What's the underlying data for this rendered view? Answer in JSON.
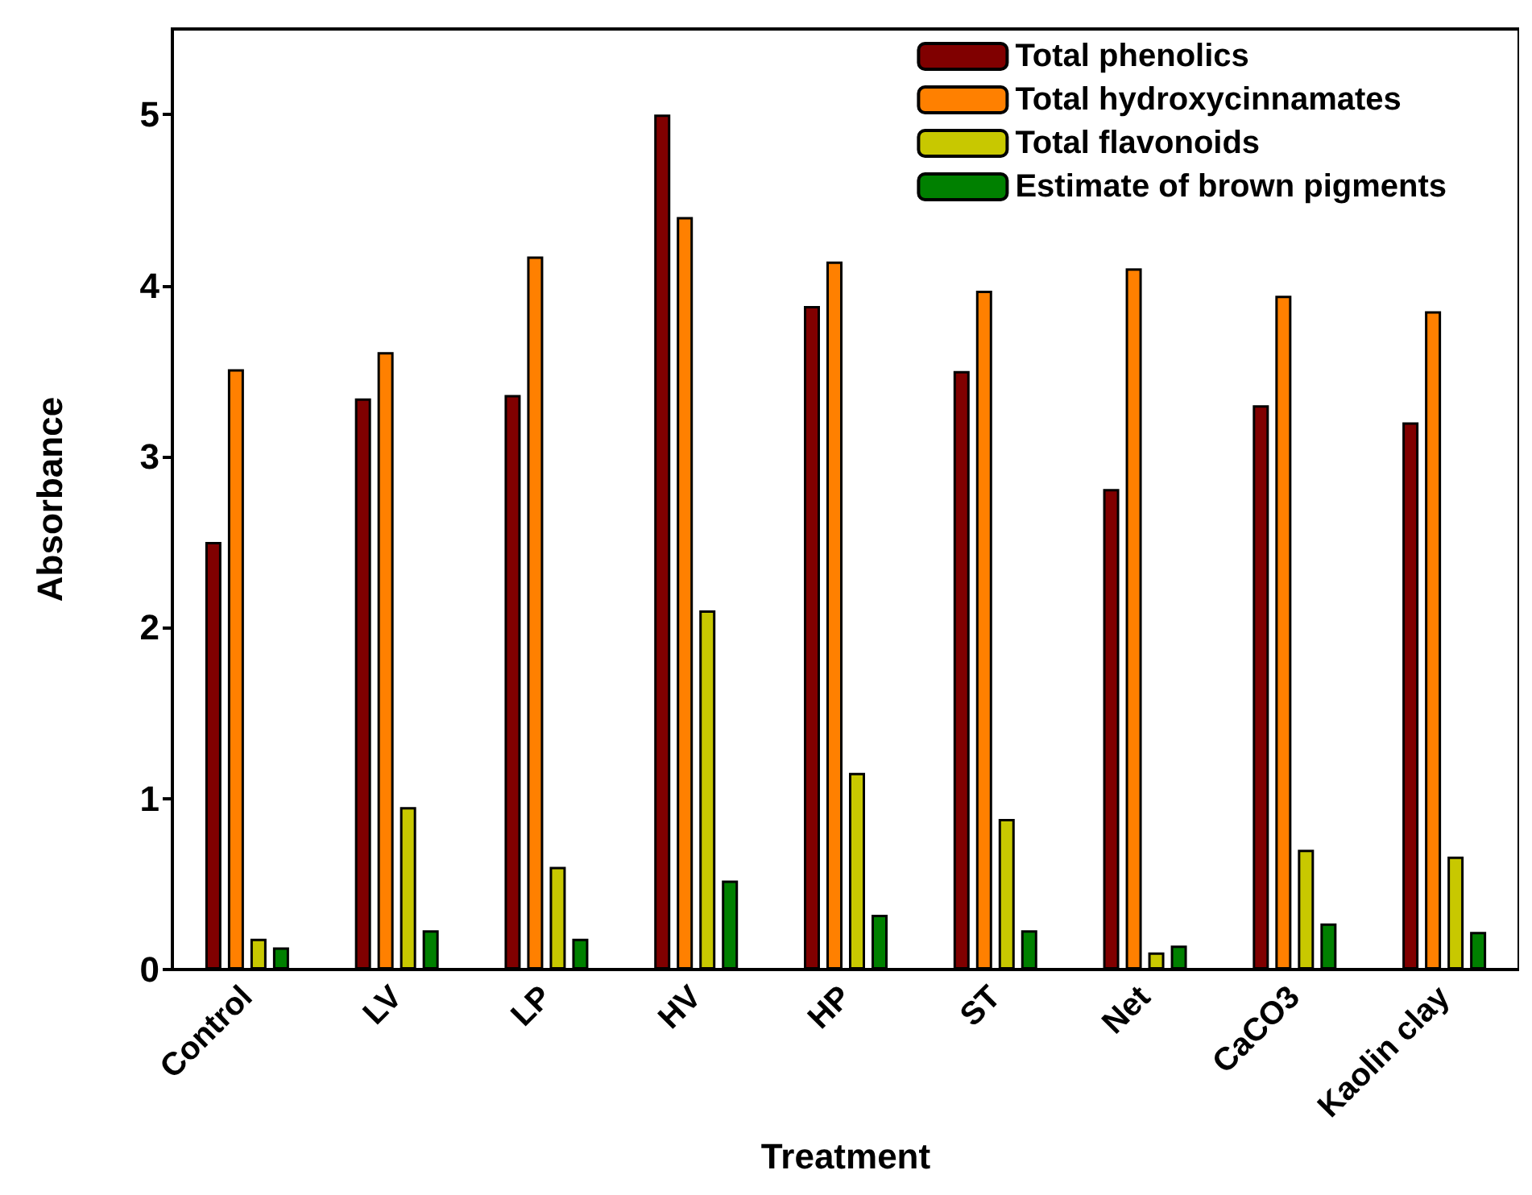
{
  "chart_data": {
    "type": "bar",
    "xlabel": "Treatment",
    "ylabel": "Absorbance",
    "categories": [
      "Control",
      "LV",
      "LP",
      "HV",
      "HP",
      "ST",
      "Net",
      "CaCO3",
      "Kaolin clay"
    ],
    "series": [
      {
        "name": "Total phenolics",
        "color": "#800000",
        "values": [
          2.5,
          3.34,
          3.36,
          5.0,
          3.88,
          3.5,
          2.81,
          3.3,
          3.2
        ]
      },
      {
        "name": "Total hydroxycinnamates",
        "color": "#ff8000",
        "values": [
          3.51,
          3.61,
          4.17,
          4.4,
          4.14,
          3.97,
          4.1,
          3.94,
          3.85
        ]
      },
      {
        "name": "Total flavonoids",
        "color": "#c8c800",
        "values": [
          0.18,
          0.95,
          0.6,
          2.1,
          1.15,
          0.88,
          0.1,
          0.7,
          0.66
        ]
      },
      {
        "name": "Estimate of brown pigments",
        "color": "#008000",
        "values": [
          0.13,
          0.23,
          0.18,
          0.52,
          0.32,
          0.23,
          0.14,
          0.27,
          0.22
        ]
      }
    ],
    "ylim": [
      0,
      5.5
    ],
    "yticks": [
      0,
      1,
      2,
      3,
      4,
      5
    ],
    "grid": false,
    "legend": "top right"
  }
}
